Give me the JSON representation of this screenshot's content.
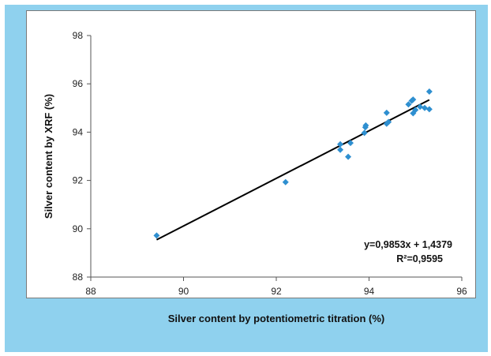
{
  "chart_data": {
    "type": "scatter",
    "title": "",
    "xlabel": "Silver content by potentiometric titration (%)",
    "ylabel": "Silver content by XRF (%)",
    "xlim": [
      88,
      96
    ],
    "ylim": [
      88,
      98
    ],
    "xticks": [
      "88",
      "90",
      "92",
      "94",
      "96"
    ],
    "yticks": [
      "88",
      "90",
      "92",
      "94",
      "96",
      "98"
    ],
    "grid": false,
    "legend": "none",
    "series": [
      {
        "color": "#2e8fd0",
        "marker": "diamond",
        "points": [
          {
            "x": 89.42,
            "y": 89.72
          },
          {
            "x": 92.2,
            "y": 91.93
          },
          {
            "x": 93.38,
            "y": 93.27
          },
          {
            "x": 93.38,
            "y": 93.5
          },
          {
            "x": 93.55,
            "y": 92.98
          },
          {
            "x": 93.6,
            "y": 93.55
          },
          {
            "x": 93.9,
            "y": 93.97
          },
          {
            "x": 93.92,
            "y": 94.2
          },
          {
            "x": 93.93,
            "y": 94.28
          },
          {
            "x": 94.38,
            "y": 94.8
          },
          {
            "x": 94.38,
            "y": 94.35
          },
          {
            "x": 94.42,
            "y": 94.42
          },
          {
            "x": 94.85,
            "y": 95.15
          },
          {
            "x": 94.92,
            "y": 95.3
          },
          {
            "x": 94.95,
            "y": 95.35
          },
          {
            "x": 94.95,
            "y": 94.78
          },
          {
            "x": 95.0,
            "y": 94.92
          },
          {
            "x": 95.1,
            "y": 95.05
          },
          {
            "x": 95.2,
            "y": 95.0
          },
          {
            "x": 95.3,
            "y": 94.95
          },
          {
            "x": 95.3,
            "y": 95.68
          }
        ]
      }
    ],
    "trendline": {
      "type": "linear",
      "slope": 0.9853,
      "intercept": 1.4379,
      "x_range": [
        89.42,
        95.3
      ],
      "color": "#000000"
    },
    "annotations": {
      "equation": "y=0,9853x + 1,4379",
      "r_squared": "R²=0,9595"
    }
  }
}
